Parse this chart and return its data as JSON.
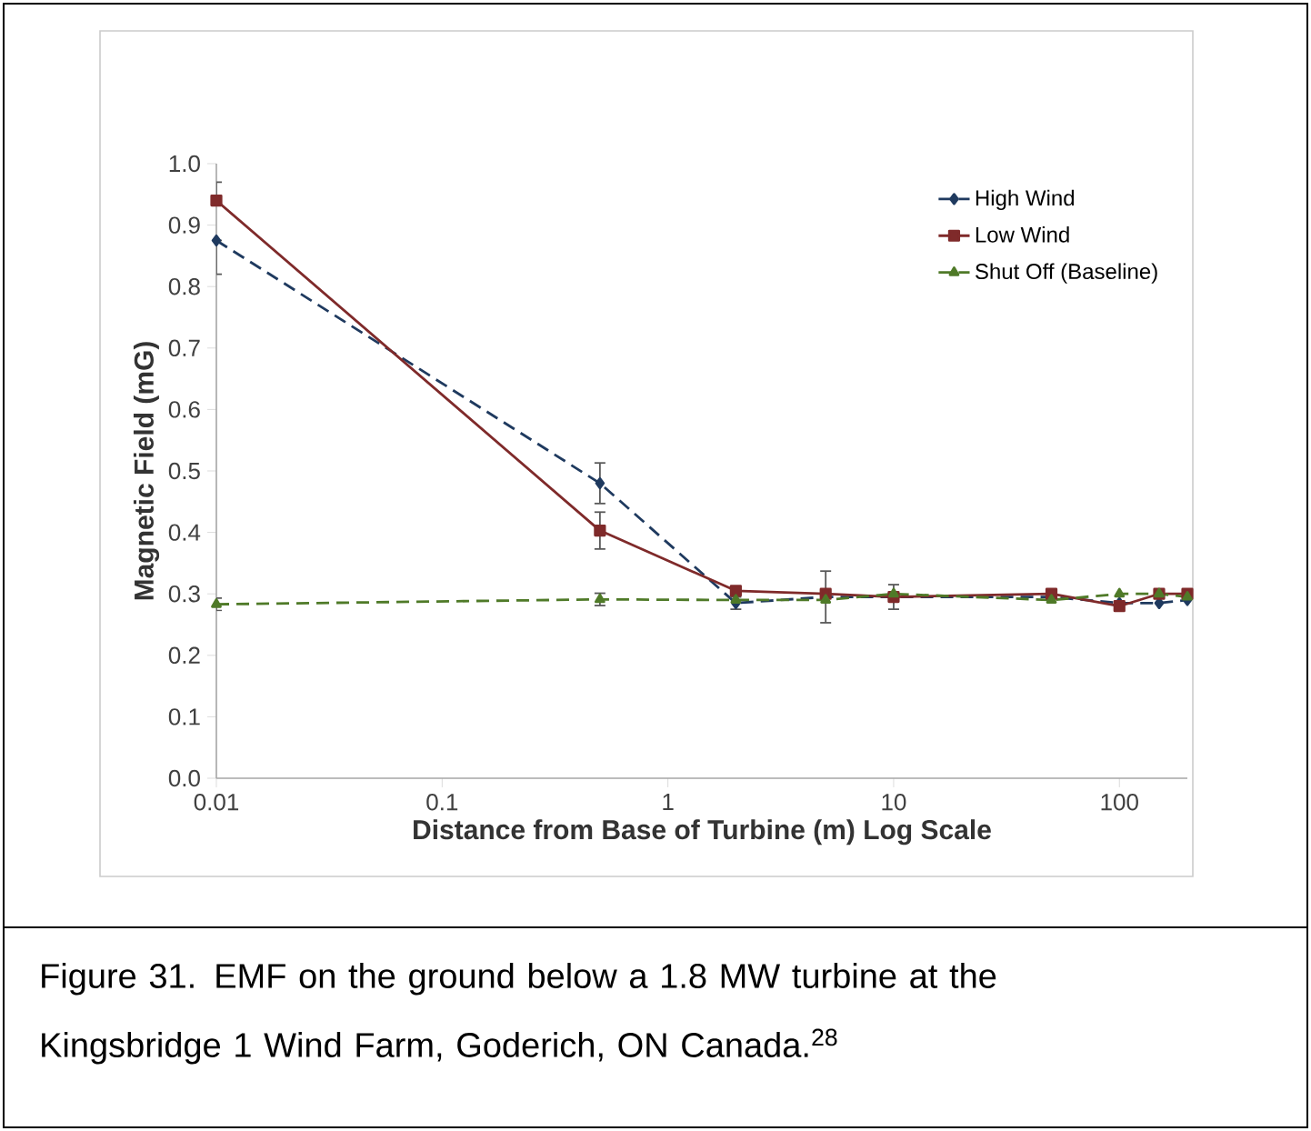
{
  "chart_data": {
    "type": "line",
    "xlabel": "Distance from Base of Turbine (m) Log Scale",
    "ylabel": "Magnetic Field (mG)",
    "annotations": [
      "Figure 31. EMF on the ground below a 1.8 MW turbine at the Kingsbridge 1 Wind Farm, Goderich, ON Canada.$^{28}$"
    ],
    "x": [
      0.01,
      0.5,
      2,
      5,
      10,
      50,
      100,
      150,
      200
    ],
    "series": [
      {
        "name": "High Wind",
        "color": "#1f3a5f",
        "marker": "diamond",
        "line_style": "dashed",
        "values": [
          0.875,
          0.48,
          0.285,
          0.295,
          0.295,
          0.295,
          0.285,
          0.285,
          0.29
        ],
        "errors": [
          [
            0.82,
            0.875
          ],
          0.033,
          0.01,
          0.042,
          0.02,
          null,
          null,
          null,
          null
        ]
      },
      {
        "name": "Low Wind",
        "color": "#7f2a2a",
        "marker": "square",
        "line_style": "solid",
        "values": [
          0.94,
          0.403,
          0.305,
          0.3,
          0.295,
          0.3,
          0.28,
          0.3,
          0.3
        ],
        "errors": [
          [
            0.94,
            0.97
          ],
          0.03,
          null,
          null,
          null,
          null,
          null,
          null,
          null
        ]
      },
      {
        "name": "Shut Off (Baseline)",
        "color": "#4f7a28",
        "marker": "triangle",
        "line_style": "dashed",
        "values": [
          0.283,
          0.291,
          0.29,
          0.29,
          0.3,
          0.29,
          0.3,
          0.3,
          0.295
        ],
        "errors": [
          0.01,
          0.01,
          null,
          null,
          null,
          null,
          null,
          null,
          null
        ]
      }
    ],
    "log": "x",
    "xlim": [
      0.01,
      200
    ],
    "xticks": [
      0.01,
      0.1,
      1,
      10,
      100
    ],
    "ylim": [
      0,
      1
    ],
    "yticks": [
      {
        "value": 0,
        "label": "0.0"
      },
      {
        "value": 0.1,
        "label": "0.1"
      },
      {
        "value": 0.2,
        "label": "0.2"
      },
      {
        "value": 0.3,
        "label": "0.3"
      },
      {
        "value": 0.4,
        "label": "0.4"
      },
      {
        "value": 0.5,
        "label": "0.5"
      },
      {
        "value": 0.6,
        "label": "0.6"
      },
      {
        "value": 0.7,
        "label": "0.7"
      },
      {
        "value": 0.8,
        "label": "0.8"
      },
      {
        "value": 0.9,
        "label": "0.9"
      },
      {
        "value": 1,
        "label": "1.0"
      }
    ],
    "grid": false,
    "legend": "top right"
  }
}
